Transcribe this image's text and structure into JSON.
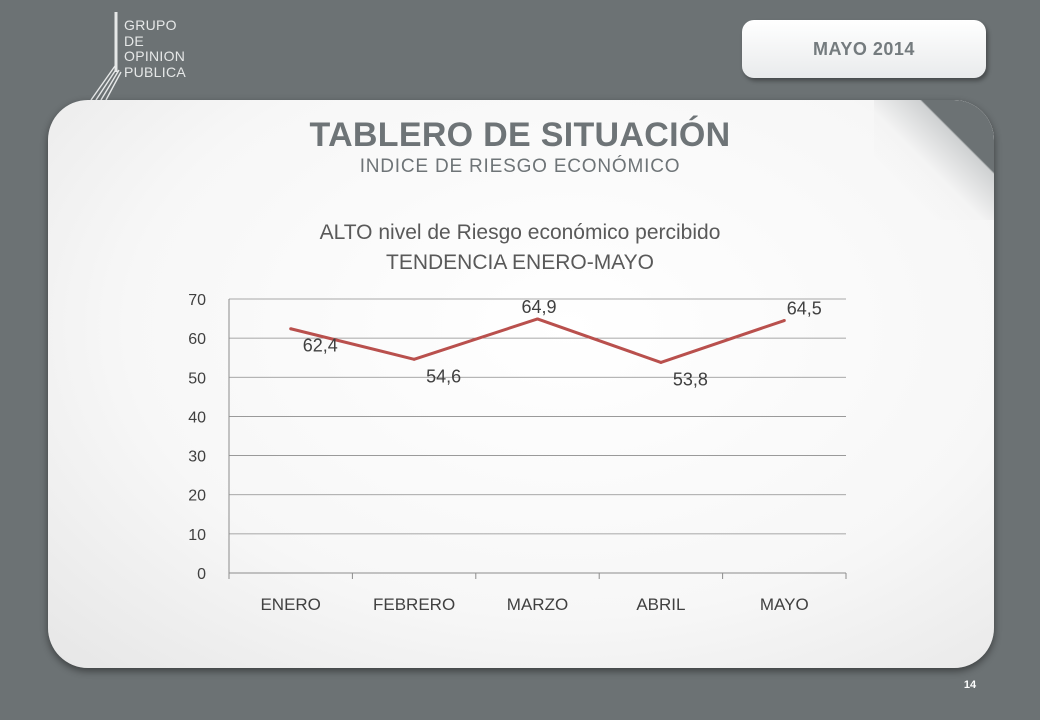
{
  "logo": {
    "lines": [
      "GRUPO",
      "DE",
      "OPINION",
      "PUBLICA"
    ]
  },
  "date_badge": "MAYO  2014",
  "header": {
    "title": "TABLERO DE SITUACIÓN",
    "subtitle": "INDICE DE RIESGO  ECONÓMICO"
  },
  "page_number": "14",
  "chart_data": {
    "type": "line",
    "title": "ALTO nivel de Riesgo económico percibido",
    "subtitle": "TENDENCIA ENERO-MAYO",
    "categories": [
      "ENERO",
      "FEBRERO",
      "MARZO",
      "ABRIL",
      "MAYO"
    ],
    "series": [
      {
        "values": [
          62.4,
          54.6,
          64.9,
          53.8,
          64.5
        ],
        "labels": [
          "62,4",
          "54,6",
          "64,9",
          "53,8",
          "64,5"
        ],
        "color": "#b9504d"
      }
    ],
    "ylim": [
      0,
      70
    ],
    "yticks": [
      0,
      10,
      20,
      30,
      40,
      50,
      60,
      70
    ],
    "grid": true,
    "legend": "none"
  }
}
